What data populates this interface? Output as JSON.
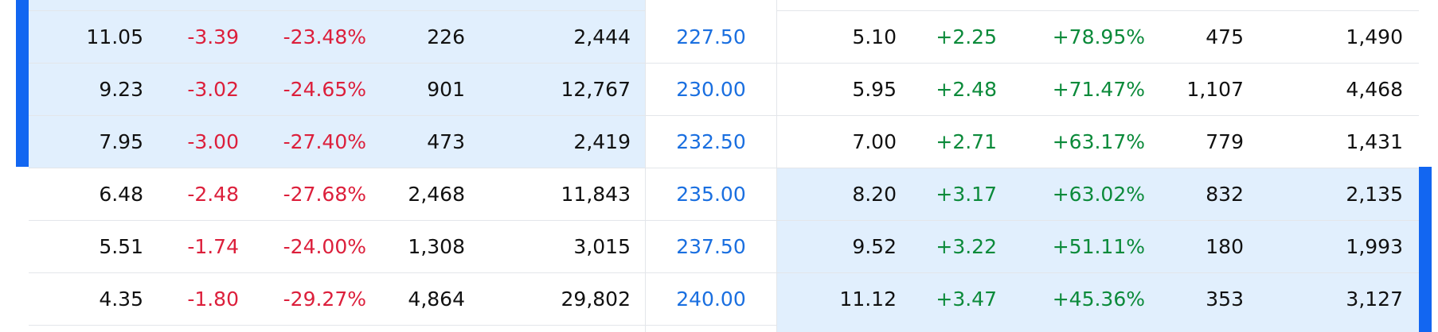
{
  "columns": {
    "call": [
      "last",
      "change",
      "pct_change",
      "volume",
      "open_interest"
    ],
    "strike": "strike",
    "put": [
      "last",
      "change",
      "pct_change",
      "volume",
      "open_interest"
    ]
  },
  "colors": {
    "in_the_money_highlight": "#e1effd",
    "marker": "#1266f1",
    "negative": "#dc1f3b",
    "positive": "#0b8a3a",
    "strike": "#1a6fe0"
  },
  "rows": [
    {
      "strike": "227.50",
      "itm_side": "call",
      "call": {
        "last": "11.05",
        "change": "-3.39",
        "pct_change": "-23.48%",
        "volume": "226",
        "open_interest": "2,444"
      },
      "put": {
        "last": "5.10",
        "change": "+2.25",
        "pct_change": "+78.95%",
        "volume": "475",
        "open_interest": "1,490"
      }
    },
    {
      "strike": "230.00",
      "itm_side": "call",
      "call": {
        "last": "9.23",
        "change": "-3.02",
        "pct_change": "-24.65%",
        "volume": "901",
        "open_interest": "12,767"
      },
      "put": {
        "last": "5.95",
        "change": "+2.48",
        "pct_change": "+71.47%",
        "volume": "1,107",
        "open_interest": "4,468"
      }
    },
    {
      "strike": "232.50",
      "itm_side": "call",
      "call": {
        "last": "7.95",
        "change": "-3.00",
        "pct_change": "-27.40%",
        "volume": "473",
        "open_interest": "2,419"
      },
      "put": {
        "last": "7.00",
        "change": "+2.71",
        "pct_change": "+63.17%",
        "volume": "779",
        "open_interest": "1,431"
      }
    },
    {
      "strike": "235.00",
      "itm_side": "put",
      "call": {
        "last": "6.48",
        "change": "-2.48",
        "pct_change": "-27.68%",
        "volume": "2,468",
        "open_interest": "11,843"
      },
      "put": {
        "last": "8.20",
        "change": "+3.17",
        "pct_change": "+63.02%",
        "volume": "832",
        "open_interest": "2,135"
      }
    },
    {
      "strike": "237.50",
      "itm_side": "put",
      "call": {
        "last": "5.51",
        "change": "-1.74",
        "pct_change": "-24.00%",
        "volume": "1,308",
        "open_interest": "3,015"
      },
      "put": {
        "last": "9.52",
        "change": "+3.22",
        "pct_change": "+51.11%",
        "volume": "180",
        "open_interest": "1,993"
      }
    },
    {
      "strike": "240.00",
      "itm_side": "put",
      "call": {
        "last": "4.35",
        "change": "-1.80",
        "pct_change": "-29.27%",
        "volume": "4,864",
        "open_interest": "29,802"
      },
      "put": {
        "last": "11.12",
        "change": "+3.47",
        "pct_change": "+45.36%",
        "volume": "353",
        "open_interest": "3,127"
      }
    }
  ]
}
